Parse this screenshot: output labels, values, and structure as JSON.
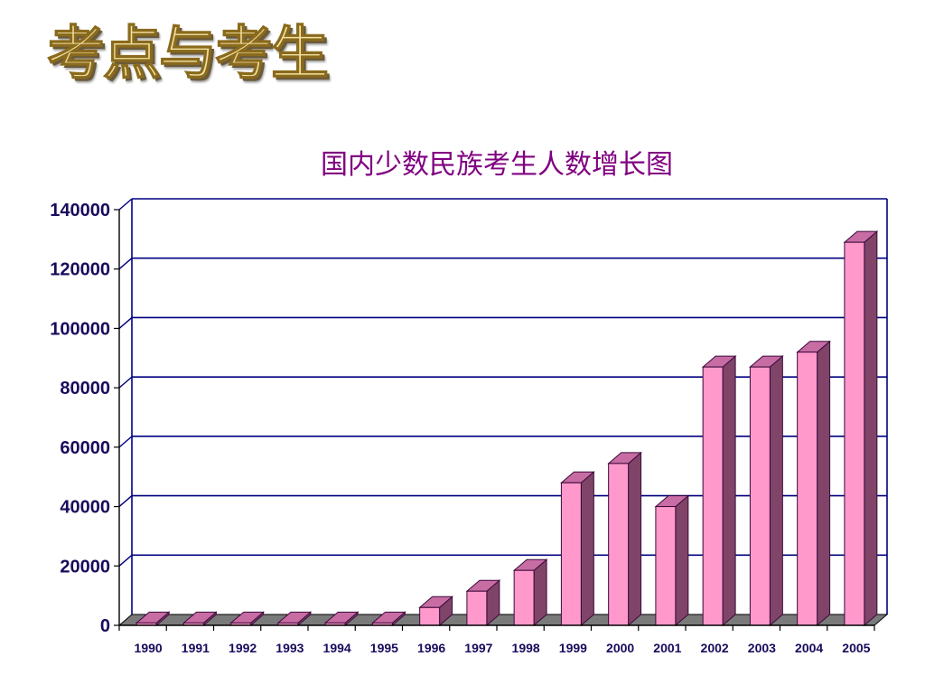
{
  "page": {
    "heading": "考点与考生"
  },
  "chart_data": {
    "type": "bar",
    "title": "国内少数民族考生人数增长图",
    "xlabel": "",
    "ylabel": "",
    "categories": [
      "1990",
      "1991",
      "1992",
      "1993",
      "1994",
      "1995",
      "1996",
      "1997",
      "1998",
      "1999",
      "2000",
      "2001",
      "2002",
      "2003",
      "2004",
      "2005"
    ],
    "series": [
      {
        "values": [
          800,
          800,
          800,
          800,
          800,
          800,
          6000,
          11500,
          18500,
          48000,
          54500,
          40000,
          87000,
          87000,
          92000,
          129000
        ]
      }
    ],
    "ylim": [
      0,
      140000
    ],
    "yticks": [
      0,
      20000,
      40000,
      60000,
      80000,
      100000,
      120000,
      140000
    ],
    "grid": true,
    "style": "3d-column",
    "colors": {
      "bar_front": "#ff99cc",
      "bar_side": "#7f4468",
      "bar_top": "#c86ca4",
      "bar_outline": "#3a0a3a",
      "floor": "#7a7a7a",
      "gridline": "#000080",
      "tick_label": "#1a0a5c",
      "title": "#800080"
    }
  }
}
